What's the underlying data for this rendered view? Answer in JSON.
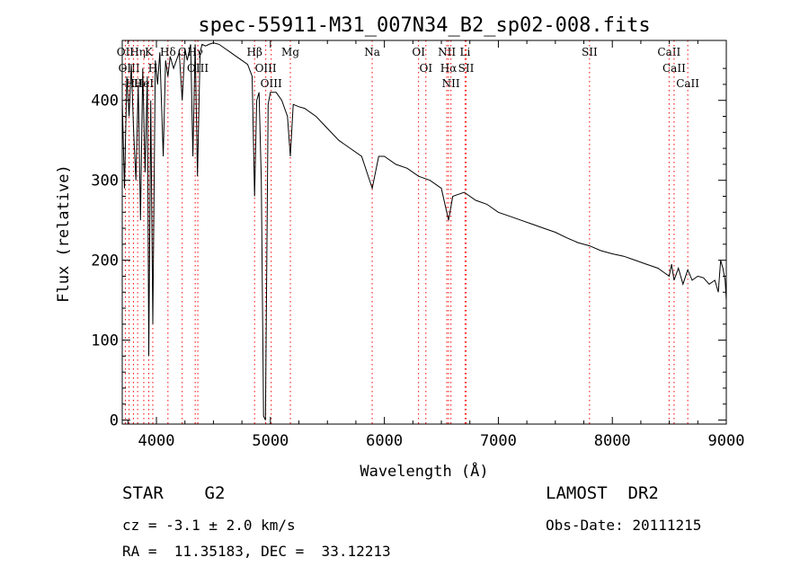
{
  "chart_data": {
    "type": "line",
    "title": "spec-55911-M31_007N34_B2_sp02-008.fits",
    "xlabel": "Wavelength (Å)",
    "ylabel": "Flux (relative)",
    "xlim": [
      3700,
      9000
    ],
    "ylim": [
      -5,
      475
    ],
    "xticks": [
      4000,
      5000,
      6000,
      7000,
      8000,
      9000
    ],
    "yticks": [
      0,
      100,
      200,
      300,
      400
    ],
    "line_color": "#000000",
    "marker_color": "#ff0000",
    "series": [
      {
        "x": [
          3700,
          3720,
          3740,
          3760,
          3780,
          3800,
          3820,
          3840,
          3860,
          3880,
          3900,
          3920,
          3933,
          3950,
          3968,
          3990,
          4010,
          4030,
          4060,
          4080,
          4101,
          4120,
          4150,
          4200,
          4226,
          4250,
          4270,
          4300,
          4320,
          4340,
          4360,
          4383,
          4400,
          4430,
          4460,
          4500,
          4550,
          4600,
          4650,
          4700,
          4750,
          4800,
          4840,
          4861,
          4880,
          4900,
          4920,
          4940,
          4956,
          4980,
          5000,
          5050,
          5100,
          5150,
          5175,
          5200,
          5250,
          5300,
          5400,
          5500,
          5600,
          5700,
          5800,
          5893,
          5950,
          6000,
          6100,
          6200,
          6300,
          6400,
          6500,
          6563,
          6600,
          6700,
          6800,
          6900,
          7000,
          7100,
          7200,
          7300,
          7400,
          7500,
          7600,
          7700,
          7800,
          7900,
          8000,
          8100,
          8200,
          8300,
          8400,
          8450,
          8498,
          8520,
          8542,
          8580,
          8620,
          8662,
          8700,
          8750,
          8800,
          8850,
          8900,
          8930,
          8950,
          8970,
          8990,
          9000
        ],
        "y": [
          400,
          290,
          430,
          380,
          445,
          360,
          300,
          420,
          250,
          440,
          310,
          430,
          80,
          400,
          120,
          450,
          420,
          460,
          330,
          450,
          430,
          455,
          440,
          460,
          400,
          465,
          450,
          470,
          330,
          470,
          305,
          460,
          470,
          468,
          470,
          472,
          470,
          465,
          460,
          455,
          450,
          445,
          430,
          280,
          400,
          410,
          300,
          5,
          0,
          395,
          410,
          410,
          400,
          380,
          330,
          395,
          392,
          390,
          380,
          365,
          350,
          340,
          330,
          290,
          330,
          330,
          320,
          315,
          305,
          300,
          290,
          250,
          280,
          285,
          275,
          270,
          260,
          255,
          250,
          245,
          240,
          235,
          228,
          222,
          218,
          212,
          208,
          205,
          200,
          195,
          190,
          185,
          180,
          195,
          175,
          190,
          170,
          188,
          175,
          180,
          178,
          170,
          175,
          160,
          200,
          190,
          175,
          150
        ]
      }
    ],
    "line_markers": [
      {
        "label": "Hθ",
        "x": 3798
      },
      {
        "label": "OII",
        "x": 3727
      },
      {
        "label": "OIII",
        "x": 3760
      },
      {
        "label": "Hη",
        "x": 3835
      },
      {
        "label": "HeI",
        "x": 3889
      },
      {
        "label": "K",
        "x": 3933
      },
      {
        "label": "Hδ",
        "x": 4101
      },
      {
        "label": "H",
        "x": 3968
      },
      {
        "label": "G",
        "x": 4226
      },
      {
        "label": "Hγ",
        "x": 4340
      },
      {
        "label": "OIII",
        "x": 4363
      },
      {
        "label": "Hβ",
        "x": 4861
      },
      {
        "label": "OIII",
        "x": 4959
      },
      {
        "label": "OIII",
        "x": 5007
      },
      {
        "label": "Mg",
        "x": 5175
      },
      {
        "label": "Na",
        "x": 5893
      },
      {
        "label": "OI",
        "x": 6300
      },
      {
        "label": "OI",
        "x": 6364
      },
      {
        "label": "Hα",
        "x": 6563
      },
      {
        "label": "NII",
        "x": 6548
      },
      {
        "label": "NII",
        "x": 6584
      },
      {
        "label": "Li",
        "x": 6708
      },
      {
        "label": "SII",
        "x": 6717
      },
      {
        "label": "SII",
        "x": 7800
      },
      {
        "label": "CaII",
        "x": 8498
      },
      {
        "label": "CaII",
        "x": 8542
      },
      {
        "label": "CaII",
        "x": 8662
      }
    ]
  },
  "info": {
    "class": "STAR    G2",
    "survey": "LAMOST  DR2",
    "cz": "cz = -3.1 ± 2.0 km/s",
    "obs_date": "Obs-Date: 20111215",
    "radec": "RA =  11.35183, DEC =  33.12213"
  }
}
